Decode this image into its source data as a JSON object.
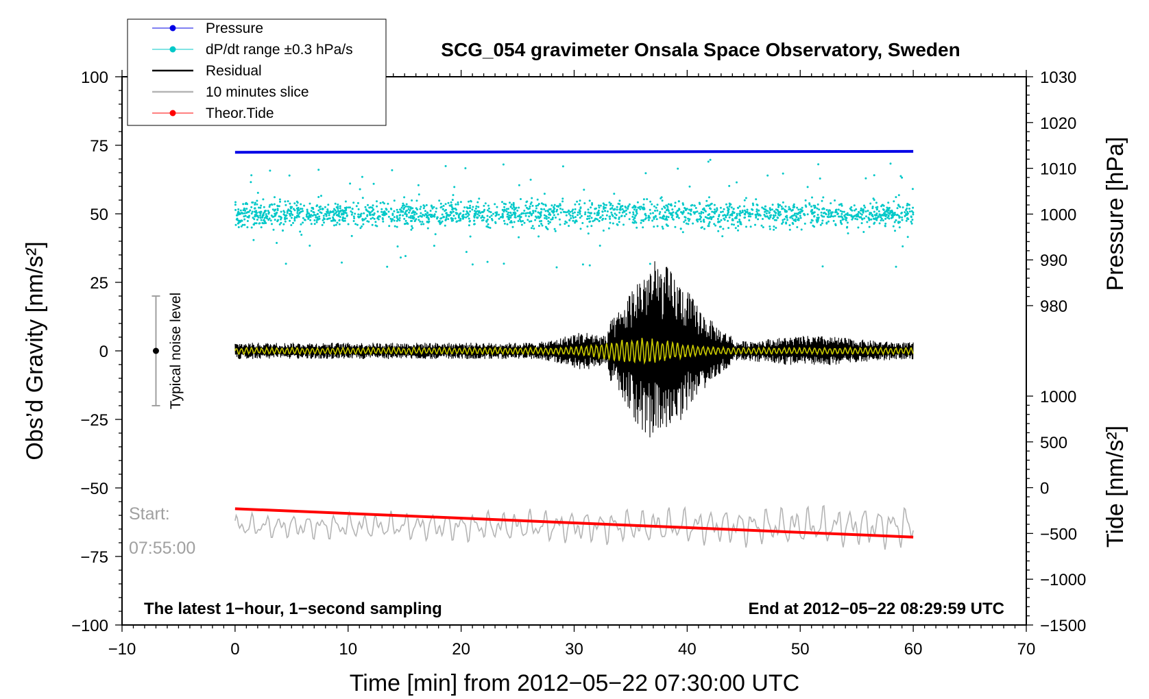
{
  "chart_data": {
    "type": "line",
    "title": "SCG_054 gravimeter Onsala Space Observatory, Sweden",
    "xlabel": "Time [min] from 2012−05−22 07:30:00 UTC",
    "ylabel_left": "Obs’d Gravity [nm/s²]",
    "ylabel_right_upper": "Pressure [hPa]",
    "ylabel_right_lower": "Tide [nm/s²]",
    "xlim": [
      -10,
      70
    ],
    "ylim": [
      -100,
      100
    ],
    "x_ticks": [
      "−10",
      "0",
      "10",
      "20",
      "30",
      "40",
      "50",
      "60",
      "70"
    ],
    "x_tick_values": [
      -10,
      0,
      10,
      20,
      30,
      40,
      50,
      60,
      70
    ],
    "y_ticks_left": [
      "100",
      "75",
      "50",
      "25",
      "0",
      "−25",
      "−50",
      "−75",
      "−100"
    ],
    "y_tick_values_left": [
      100,
      75,
      50,
      25,
      0,
      -25,
      -50,
      -75,
      -100
    ],
    "pressure_axis": {
      "ticks": [
        "1030",
        "1020",
        "1010",
        "1000",
        "990",
        "980"
      ],
      "values": [
        1030,
        1020,
        1010,
        1000,
        990,
        980
      ],
      "range": [
        980,
        1030
      ]
    },
    "tide_axis": {
      "ticks": [
        "1000",
        "500",
        "0",
        "−500",
        "−1000",
        "−1500"
      ],
      "values": [
        1000,
        500,
        0,
        -500,
        -1000,
        -1500
      ],
      "range": [
        -1500,
        1000
      ]
    },
    "legend": {
      "placement": "top-left",
      "entries": [
        {
          "label": "Pressure",
          "color": "#0000e6",
          "marker": true
        },
        {
          "label": "dP/dt range ±0.3 hPa/s",
          "color": "#00c8c8",
          "marker": true
        },
        {
          "label": "Residual",
          "color": "#000000",
          "marker": false
        },
        {
          "label": "10 minutes slice",
          "color": "#b4b4b4",
          "marker": false
        },
        {
          "label": "Theor.Tide",
          "color": "#ff0000",
          "marker": true
        }
      ]
    },
    "series": [
      {
        "name": "Pressure",
        "axis": "pressure",
        "x_range": [
          0,
          60
        ],
        "y_start": 1013.5,
        "y_end": 1013.7,
        "color": "#0000e6"
      },
      {
        "name": "dP/dt range ±0.3 hPa/s",
        "axis": "gravity",
        "x_range": [
          0,
          60
        ],
        "center": 50,
        "typical_spread": 4,
        "max_spread": 20,
        "color": "#00c8c8"
      },
      {
        "name": "Residual",
        "axis": "gravity",
        "x_range": [
          0,
          60
        ],
        "baseline": 0,
        "quiet_amplitude": 3,
        "peak_amplitude": 33,
        "peak_x": 37,
        "color": "#000000"
      },
      {
        "name": "Residual (smoothed)",
        "axis": "gravity",
        "x_range": [
          0,
          60
        ],
        "baseline": 0,
        "peak_amplitude": 5,
        "color": "#c8c800"
      },
      {
        "name": "10 minutes slice",
        "axis": "gravity",
        "x_range": [
          0,
          60
        ],
        "center": -64,
        "amplitude": 6,
        "color": "#b4b4b4"
      },
      {
        "name": "Theor.Tide",
        "axis": "tide",
        "x_range": [
          0,
          60
        ],
        "y_start": -230,
        "y_end": -540,
        "color": "#ff0000"
      }
    ],
    "noise_level": {
      "label": "Typical noise level",
      "x": -7,
      "low": -20,
      "high": 20,
      "center": 0
    },
    "annotations": {
      "start_label": "Start:",
      "start_time": "07:55:00",
      "bottom_left": "The latest 1−hour, 1−second sampling",
      "bottom_right": "End at 2012−05−22 08:29:59 UTC"
    }
  }
}
